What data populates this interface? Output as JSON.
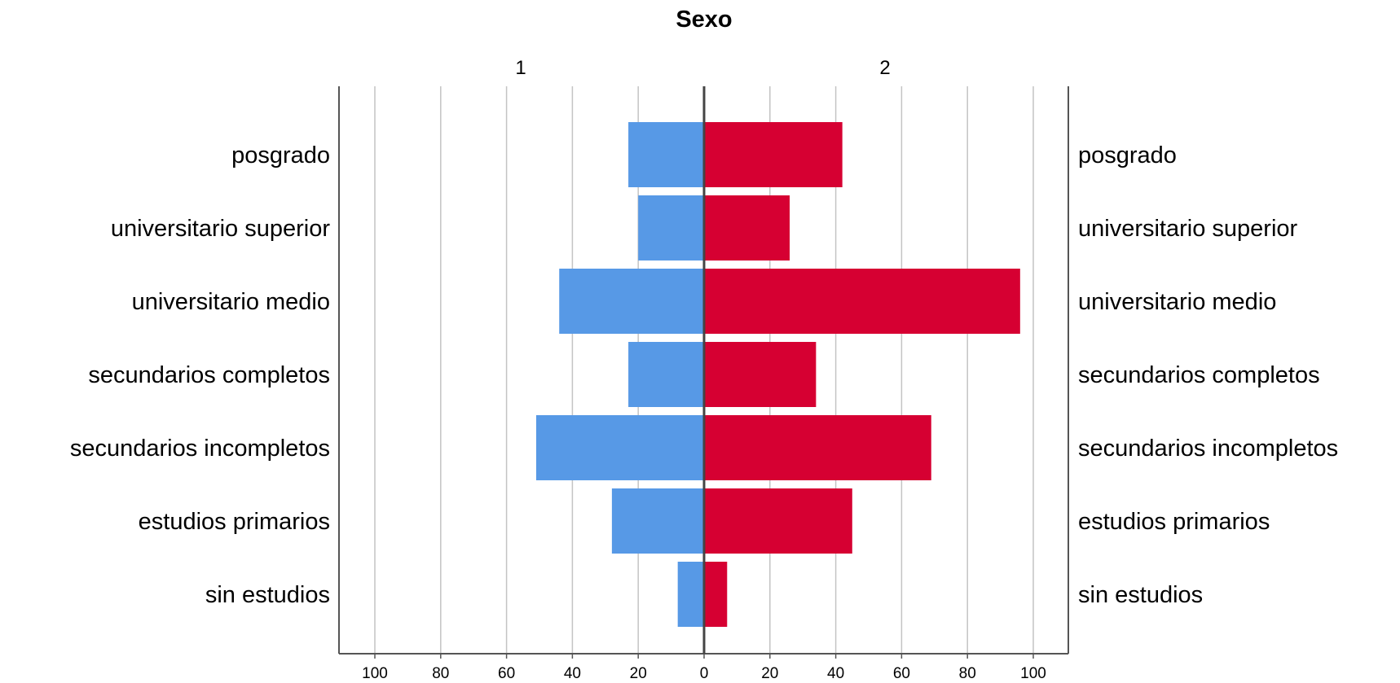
{
  "chart_data": {
    "type": "bar",
    "orientation": "horizontal-back-to-back",
    "title": "Sexo",
    "panels": [
      "1",
      "2"
    ],
    "categories": [
      "posgrado",
      "universitario superior",
      "universitario medio",
      "secundarios completos",
      "secundarios incompletos",
      "estudios primarios",
      "sin estudios"
    ],
    "series": [
      {
        "panel": "1",
        "color": "#5799e6",
        "values": [
          23,
          20,
          44,
          23,
          51,
          28,
          8
        ]
      },
      {
        "panel": "2",
        "color": "#d60032",
        "values": [
          42,
          26,
          96,
          34,
          69,
          45,
          7
        ]
      }
    ],
    "xlim": [
      0,
      110
    ],
    "ticks": [
      "0",
      "20",
      "40",
      "60",
      "80",
      "100"
    ],
    "grid": true,
    "xlabel": "",
    "ylabel": ""
  }
}
